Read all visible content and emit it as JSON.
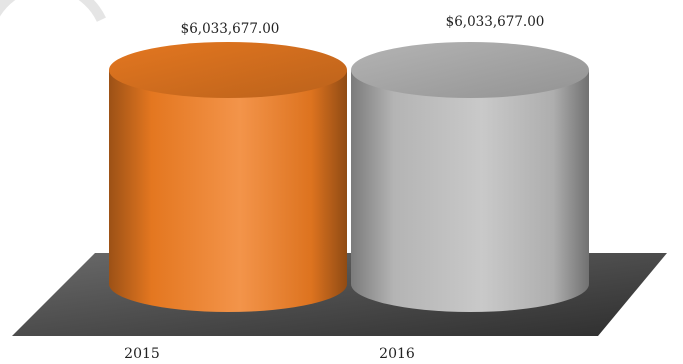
{
  "chart_data": {
    "type": "bar",
    "style": "3d-cylinder",
    "categories": [
      "2015",
      "2016"
    ],
    "values": [
      6033677.0,
      6033677.0
    ],
    "value_labels": [
      "$6,033,677.00",
      "$6,033,677.00"
    ],
    "bar_colors": [
      "#f07d22",
      "#bdbdbd"
    ],
    "floor_color": "#4a4a4a",
    "title": "",
    "xlabel": "",
    "ylabel": "",
    "grid": false,
    "legend": "none"
  }
}
